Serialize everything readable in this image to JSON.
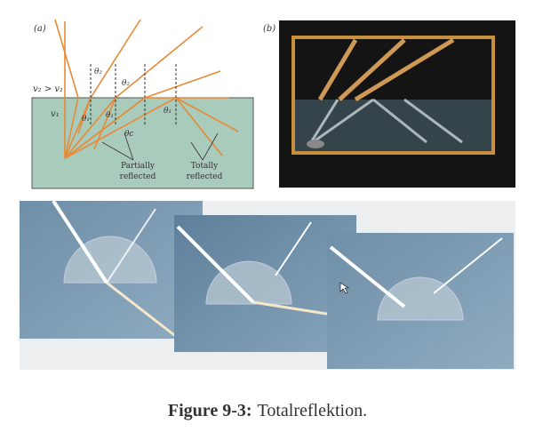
{
  "figure": {
    "panel_a": {
      "label": "(a)",
      "speed_relation": "v₂ > v₁",
      "medium_speed": "v₁",
      "angles": [
        "θ₂",
        "θ₂",
        "θ₁",
        "θ₁",
        "θc",
        "θ₁"
      ],
      "partial": [
        "Partially",
        "reflected"
      ],
      "total": [
        "Totally",
        "reflected"
      ]
    },
    "panel_b": {
      "label": "(b)"
    },
    "caption": {
      "number": "Figure 9-3:",
      "text": "Totalreflektion."
    }
  }
}
